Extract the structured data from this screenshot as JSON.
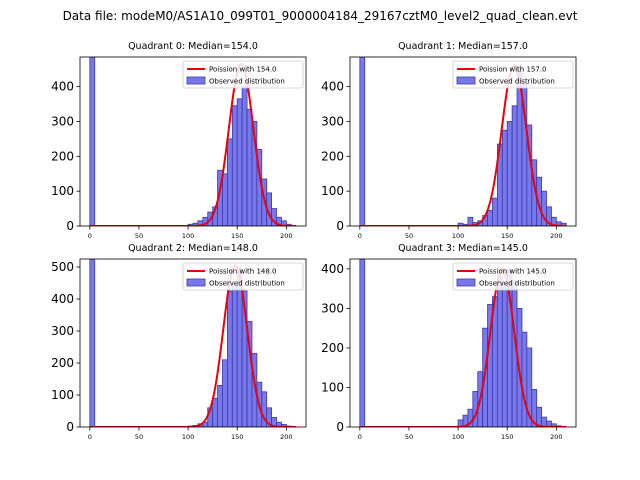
{
  "figure_title": "Data file: modeM0/AS1A10_099T01_9000004184_29167cztM0_level2_quad_clean.evt",
  "colors": {
    "bar_fill": "#7878ec",
    "bar_edge": "#3a3aa6",
    "curve": "#e8000b",
    "background": "#ffffff"
  },
  "chart_data": [
    {
      "type": "bar",
      "title": "Quadrant 0: Median=154.0",
      "legend": {
        "curve_label": "Poission with 154.0",
        "bar_label": "Observed distribution",
        "placement": "top-right"
      },
      "median": 154.0,
      "xlim": [
        -10,
        220
      ],
      "ylim": [
        0,
        485
      ],
      "xticks": [
        0,
        50,
        100,
        150,
        200
      ],
      "yticks": [
        0,
        100,
        200,
        300,
        400
      ],
      "bin_width": 5,
      "bins": [
        {
          "x": 0,
          "y": 485
        },
        {
          "x": 100,
          "y": 5
        },
        {
          "x": 105,
          "y": 8
        },
        {
          "x": 110,
          "y": 15
        },
        {
          "x": 115,
          "y": 25
        },
        {
          "x": 120,
          "y": 40
        },
        {
          "x": 125,
          "y": 55
        },
        {
          "x": 130,
          "y": 160
        },
        {
          "x": 135,
          "y": 150
        },
        {
          "x": 140,
          "y": 250
        },
        {
          "x": 145,
          "y": 345
        },
        {
          "x": 150,
          "y": 365
        },
        {
          "x": 155,
          "y": 400
        },
        {
          "x": 160,
          "y": 335
        },
        {
          "x": 165,
          "y": 300
        },
        {
          "x": 170,
          "y": 220
        },
        {
          "x": 175,
          "y": 135
        },
        {
          "x": 180,
          "y": 95
        },
        {
          "x": 185,
          "y": 50
        },
        {
          "x": 190,
          "y": 25
        },
        {
          "x": 195,
          "y": 15
        },
        {
          "x": 200,
          "y": 5
        }
      ],
      "curve": {
        "mean": 154.0,
        "peak": 465,
        "x_from": 0,
        "x_to": 210
      }
    },
    {
      "type": "bar",
      "title": "Quadrant 1: Median=157.0",
      "legend": {
        "curve_label": "Poission with 157.0",
        "bar_label": "Observed distribution",
        "placement": "top-right"
      },
      "median": 157.0,
      "xlim": [
        -10,
        220
      ],
      "ylim": [
        0,
        485
      ],
      "xticks": [
        0,
        50,
        100,
        150,
        200
      ],
      "yticks": [
        0,
        100,
        200,
        300,
        400
      ],
      "bin_width": 5,
      "bins": [
        {
          "x": 0,
          "y": 485
        },
        {
          "x": 100,
          "y": 8
        },
        {
          "x": 105,
          "y": 5
        },
        {
          "x": 110,
          "y": 25
        },
        {
          "x": 115,
          "y": 10
        },
        {
          "x": 120,
          "y": 15
        },
        {
          "x": 125,
          "y": 30
        },
        {
          "x": 130,
          "y": 45
        },
        {
          "x": 135,
          "y": 80
        },
        {
          "x": 140,
          "y": 235
        },
        {
          "x": 145,
          "y": 275
        },
        {
          "x": 150,
          "y": 300
        },
        {
          "x": 155,
          "y": 345
        },
        {
          "x": 160,
          "y": 450
        },
        {
          "x": 165,
          "y": 410
        },
        {
          "x": 170,
          "y": 290
        },
        {
          "x": 175,
          "y": 190
        },
        {
          "x": 180,
          "y": 140
        },
        {
          "x": 185,
          "y": 100
        },
        {
          "x": 190,
          "y": 55
        },
        {
          "x": 195,
          "y": 25
        },
        {
          "x": 200,
          "y": 12
        },
        {
          "x": 205,
          "y": 8
        }
      ],
      "curve": {
        "mean": 157.0,
        "peak": 460,
        "x_from": 0,
        "x_to": 210
      }
    },
    {
      "type": "bar",
      "title": "Quadrant 2: Median=148.0",
      "legend": {
        "curve_label": "Poission with 148.0",
        "bar_label": "Observed distribution",
        "placement": "top-right"
      },
      "median": 148.0,
      "xlim": [
        -10,
        220
      ],
      "ylim": [
        0,
        525
      ],
      "xticks": [
        0,
        50,
        100,
        150,
        200
      ],
      "yticks": [
        0,
        100,
        200,
        300,
        400,
        500
      ],
      "bin_width": 5,
      "bins": [
        {
          "x": 0,
          "y": 525
        },
        {
          "x": 100,
          "y": 3
        },
        {
          "x": 105,
          "y": 5
        },
        {
          "x": 110,
          "y": 10
        },
        {
          "x": 115,
          "y": 15
        },
        {
          "x": 120,
          "y": 60
        },
        {
          "x": 125,
          "y": 90
        },
        {
          "x": 130,
          "y": 130
        },
        {
          "x": 135,
          "y": 210
        },
        {
          "x": 140,
          "y": 425
        },
        {
          "x": 145,
          "y": 445
        },
        {
          "x": 150,
          "y": 495
        },
        {
          "x": 155,
          "y": 425
        },
        {
          "x": 160,
          "y": 330
        },
        {
          "x": 165,
          "y": 230
        },
        {
          "x": 170,
          "y": 140
        },
        {
          "x": 175,
          "y": 110
        },
        {
          "x": 180,
          "y": 60
        },
        {
          "x": 185,
          "y": 30
        },
        {
          "x": 190,
          "y": 15
        },
        {
          "x": 195,
          "y": 8
        },
        {
          "x": 200,
          "y": 3
        }
      ],
      "curve": {
        "mean": 148.0,
        "peak": 505,
        "x_from": 0,
        "x_to": 210
      }
    },
    {
      "type": "bar",
      "title": "Quadrant 3: Median=145.0",
      "legend": {
        "curve_label": "Poission with 145.0",
        "bar_label": "Observed distribution",
        "placement": "top-right"
      },
      "median": 145.0,
      "xlim": [
        -10,
        220
      ],
      "ylim": [
        0,
        425
      ],
      "xticks": [
        0,
        50,
        100,
        150,
        200
      ],
      "yticks": [
        0,
        100,
        200,
        300,
        400
      ],
      "bin_width": 5,
      "bins": [
        {
          "x": 0,
          "y": 425
        },
        {
          "x": 100,
          "y": 18
        },
        {
          "x": 105,
          "y": 30
        },
        {
          "x": 110,
          "y": 45
        },
        {
          "x": 115,
          "y": 90
        },
        {
          "x": 120,
          "y": 140
        },
        {
          "x": 125,
          "y": 250
        },
        {
          "x": 130,
          "y": 310
        },
        {
          "x": 135,
          "y": 330
        },
        {
          "x": 140,
          "y": 380
        },
        {
          "x": 145,
          "y": 360
        },
        {
          "x": 150,
          "y": 400
        },
        {
          "x": 155,
          "y": 370
        },
        {
          "x": 160,
          "y": 300
        },
        {
          "x": 165,
          "y": 240
        },
        {
          "x": 170,
          "y": 200
        },
        {
          "x": 175,
          "y": 95
        },
        {
          "x": 180,
          "y": 50
        },
        {
          "x": 185,
          "y": 25
        },
        {
          "x": 190,
          "y": 15
        },
        {
          "x": 195,
          "y": 8
        },
        {
          "x": 200,
          "y": 3
        }
      ],
      "curve": {
        "mean": 145.0,
        "peak": 400,
        "x_from": 0,
        "x_to": 210
      }
    }
  ]
}
